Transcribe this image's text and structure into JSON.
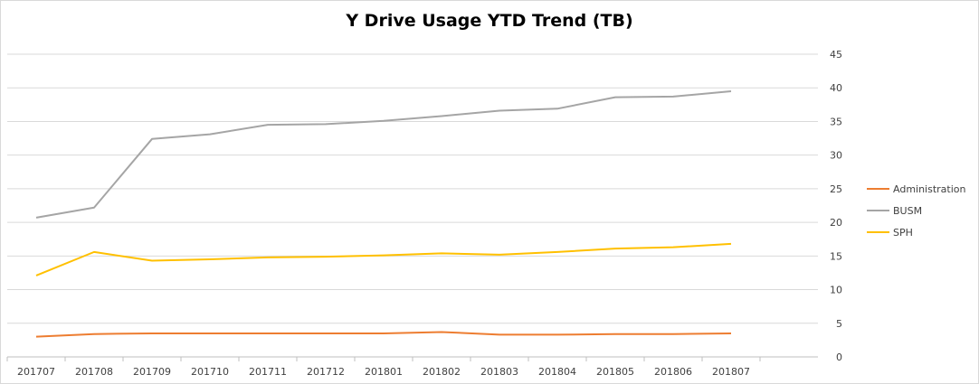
{
  "chart_data": {
    "type": "line",
    "title": "Y Drive Usage YTD Trend (TB)",
    "xlabel": "",
    "ylabel": "",
    "categories": [
      "201707",
      "201708",
      "201709",
      "201710",
      "201711",
      "201712",
      "201801",
      "201802",
      "201803",
      "201804",
      "201805",
      "201806",
      "201807"
    ],
    "ylim": [
      0,
      45
    ],
    "yticks": [
      0,
      5,
      10,
      15,
      20,
      25,
      30,
      35,
      40,
      45
    ],
    "y_axis_side": "right",
    "grid": true,
    "legend_position": "right",
    "series": [
      {
        "name": "Administration",
        "color": "#ed7d31",
        "values": [
          3.0,
          3.4,
          3.5,
          3.5,
          3.5,
          3.5,
          3.5,
          3.7,
          3.3,
          3.3,
          3.4,
          3.4,
          3.5
        ]
      },
      {
        "name": "BUSM",
        "color": "#a5a5a5",
        "values": [
          20.7,
          22.2,
          32.4,
          33.1,
          34.5,
          34.6,
          35.1,
          35.8,
          36.6,
          36.9,
          38.6,
          38.7,
          39.5
        ]
      },
      {
        "name": "SPH",
        "color": "#ffc000",
        "values": [
          12.1,
          15.6,
          14.3,
          14.5,
          14.8,
          14.9,
          15.1,
          15.4,
          15.2,
          15.6,
          16.1,
          16.3,
          16.8
        ]
      }
    ]
  }
}
